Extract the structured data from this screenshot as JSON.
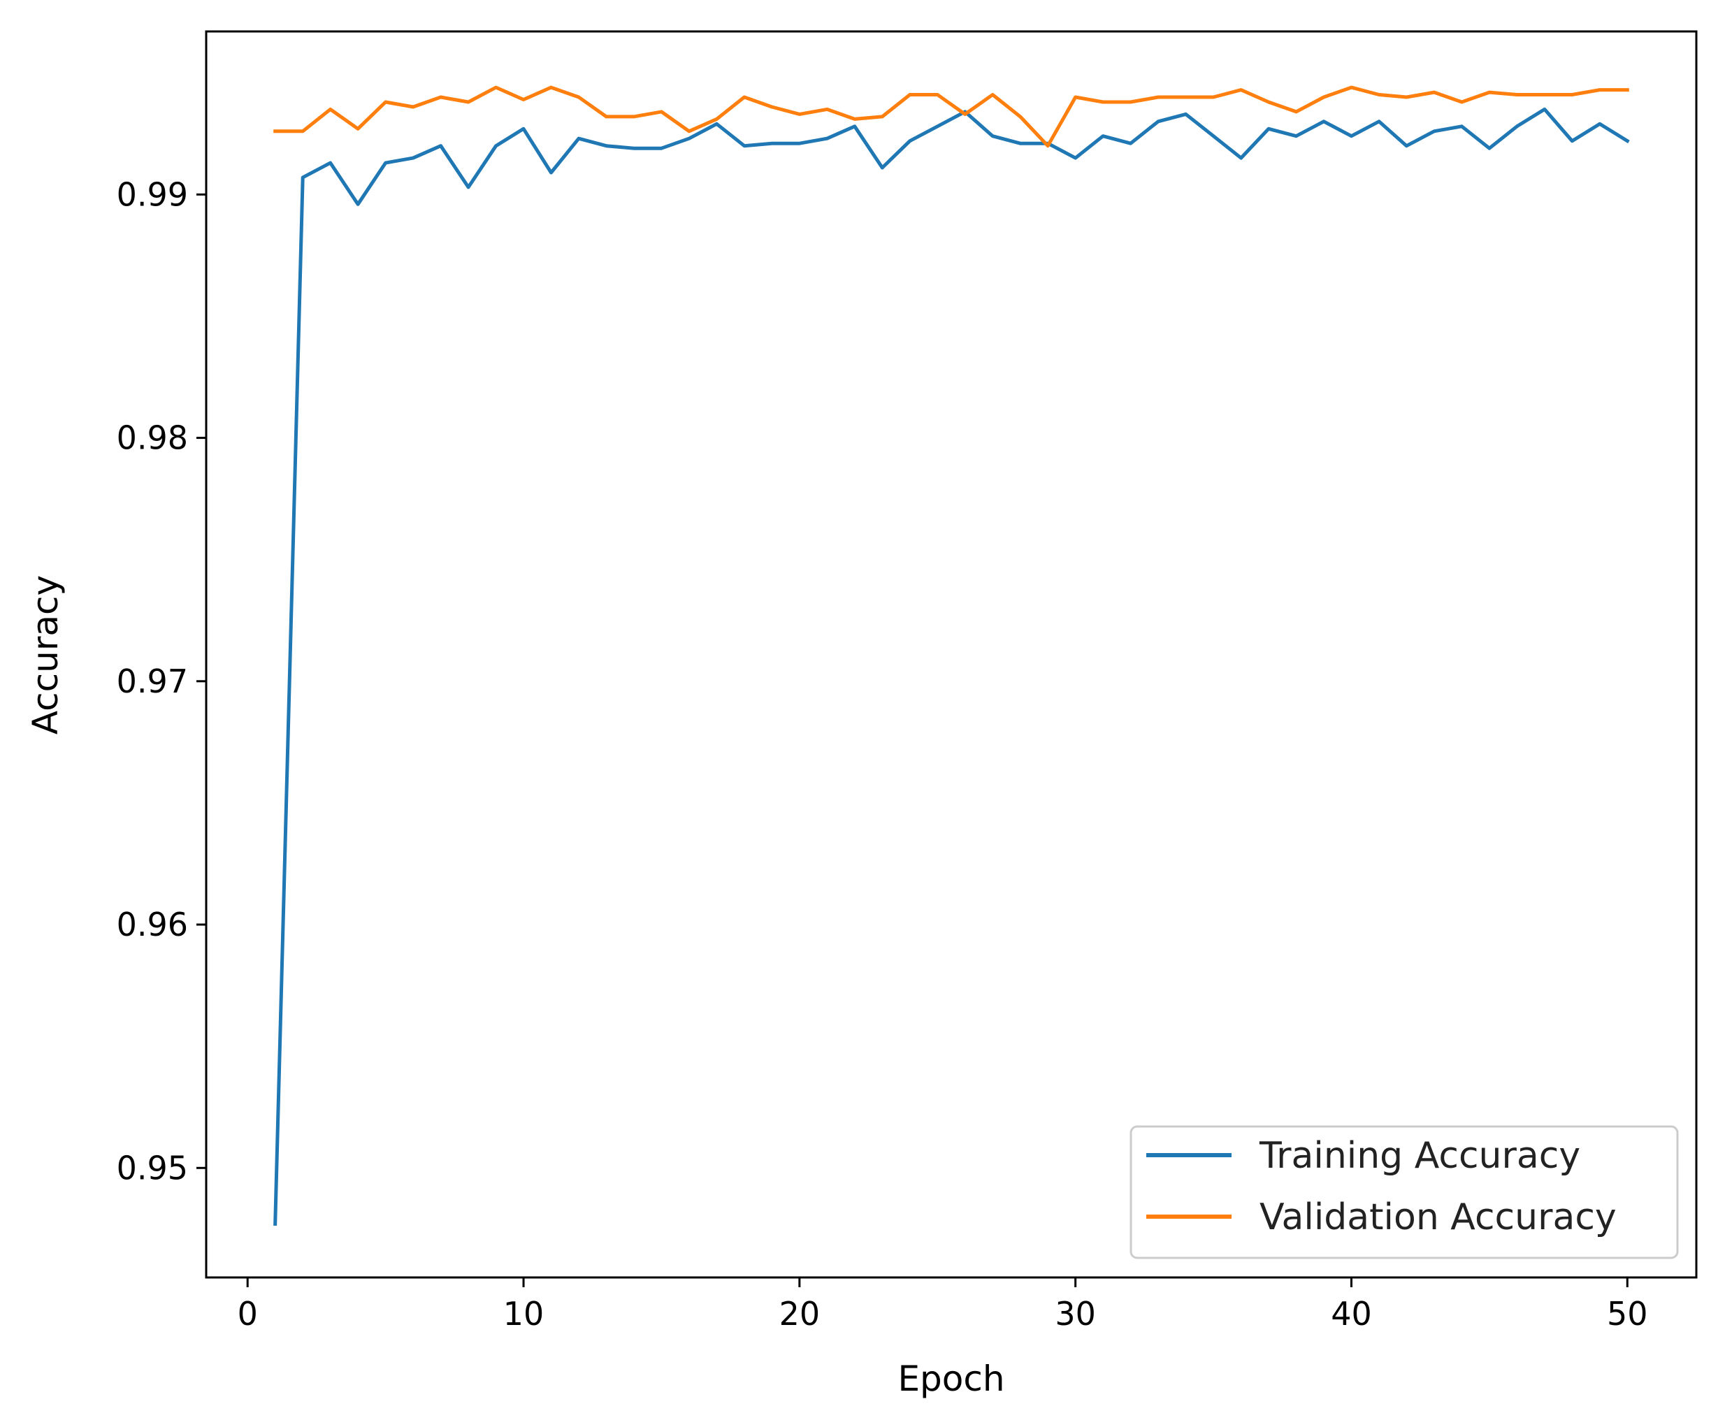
{
  "chart_data": {
    "type": "line",
    "title": "",
    "xlabel": "Epoch",
    "ylabel": "Accuracy",
    "xlim": [
      -1.5,
      52.5
    ],
    "ylim": [
      0.9455,
      0.9967
    ],
    "xticks": [
      0,
      10,
      20,
      30,
      40,
      50
    ],
    "xtick_labels": [
      "0",
      "10",
      "20",
      "30",
      "40",
      "50"
    ],
    "yticks": [
      0.95,
      0.96,
      0.97,
      0.98,
      0.99
    ],
    "ytick_labels": [
      "0.95",
      "0.96",
      "0.97",
      "0.98",
      "0.99"
    ],
    "grid": false,
    "legend_position": "lower-right",
    "x": [
      1,
      2,
      3,
      4,
      5,
      6,
      7,
      8,
      9,
      10,
      11,
      12,
      13,
      14,
      15,
      16,
      17,
      18,
      19,
      20,
      21,
      22,
      23,
      24,
      25,
      26,
      27,
      28,
      29,
      30,
      31,
      32,
      33,
      34,
      35,
      36,
      37,
      38,
      39,
      40,
      41,
      42,
      43,
      44,
      45,
      46,
      47,
      48,
      49,
      50
    ],
    "series": [
      {
        "name": "Training Accuracy",
        "color": "#1f77b4",
        "values": [
          0.9477,
          0.9907,
          0.9913,
          0.9896,
          0.9913,
          0.9915,
          0.992,
          0.9903,
          0.992,
          0.9927,
          0.9909,
          0.9923,
          0.992,
          0.9919,
          0.9919,
          0.9923,
          0.9929,
          0.992,
          0.9921,
          0.9921,
          0.9923,
          0.9928,
          0.9911,
          0.9922,
          0.9928,
          0.9934,
          0.9924,
          0.9921,
          0.9921,
          0.9915,
          0.9924,
          0.9921,
          0.993,
          0.9933,
          0.9924,
          0.9915,
          0.9927,
          0.9924,
          0.993,
          0.9924,
          0.993,
          0.992,
          0.9926,
          0.9928,
          0.9919,
          0.9928,
          0.9935,
          0.9922,
          0.9929,
          0.9922
        ]
      },
      {
        "name": "Validation Accuracy",
        "color": "#ff7f0e",
        "values": [
          0.9926,
          0.9926,
          0.9935,
          0.9927,
          0.9938,
          0.9936,
          0.994,
          0.9938,
          0.9944,
          0.9939,
          0.9944,
          0.994,
          0.9932,
          0.9932,
          0.9934,
          0.9926,
          0.9931,
          0.994,
          0.9936,
          0.9933,
          0.9935,
          0.9931,
          0.9932,
          0.9941,
          0.9941,
          0.9933,
          0.9941,
          0.9932,
          0.992,
          0.994,
          0.9938,
          0.9938,
          0.994,
          0.994,
          0.994,
          0.9943,
          0.9938,
          0.9934,
          0.994,
          0.9944,
          0.9941,
          0.994,
          0.9942,
          0.9938,
          0.9942,
          0.9941,
          0.9941,
          0.9941,
          0.9943,
          0.9943
        ]
      }
    ]
  }
}
